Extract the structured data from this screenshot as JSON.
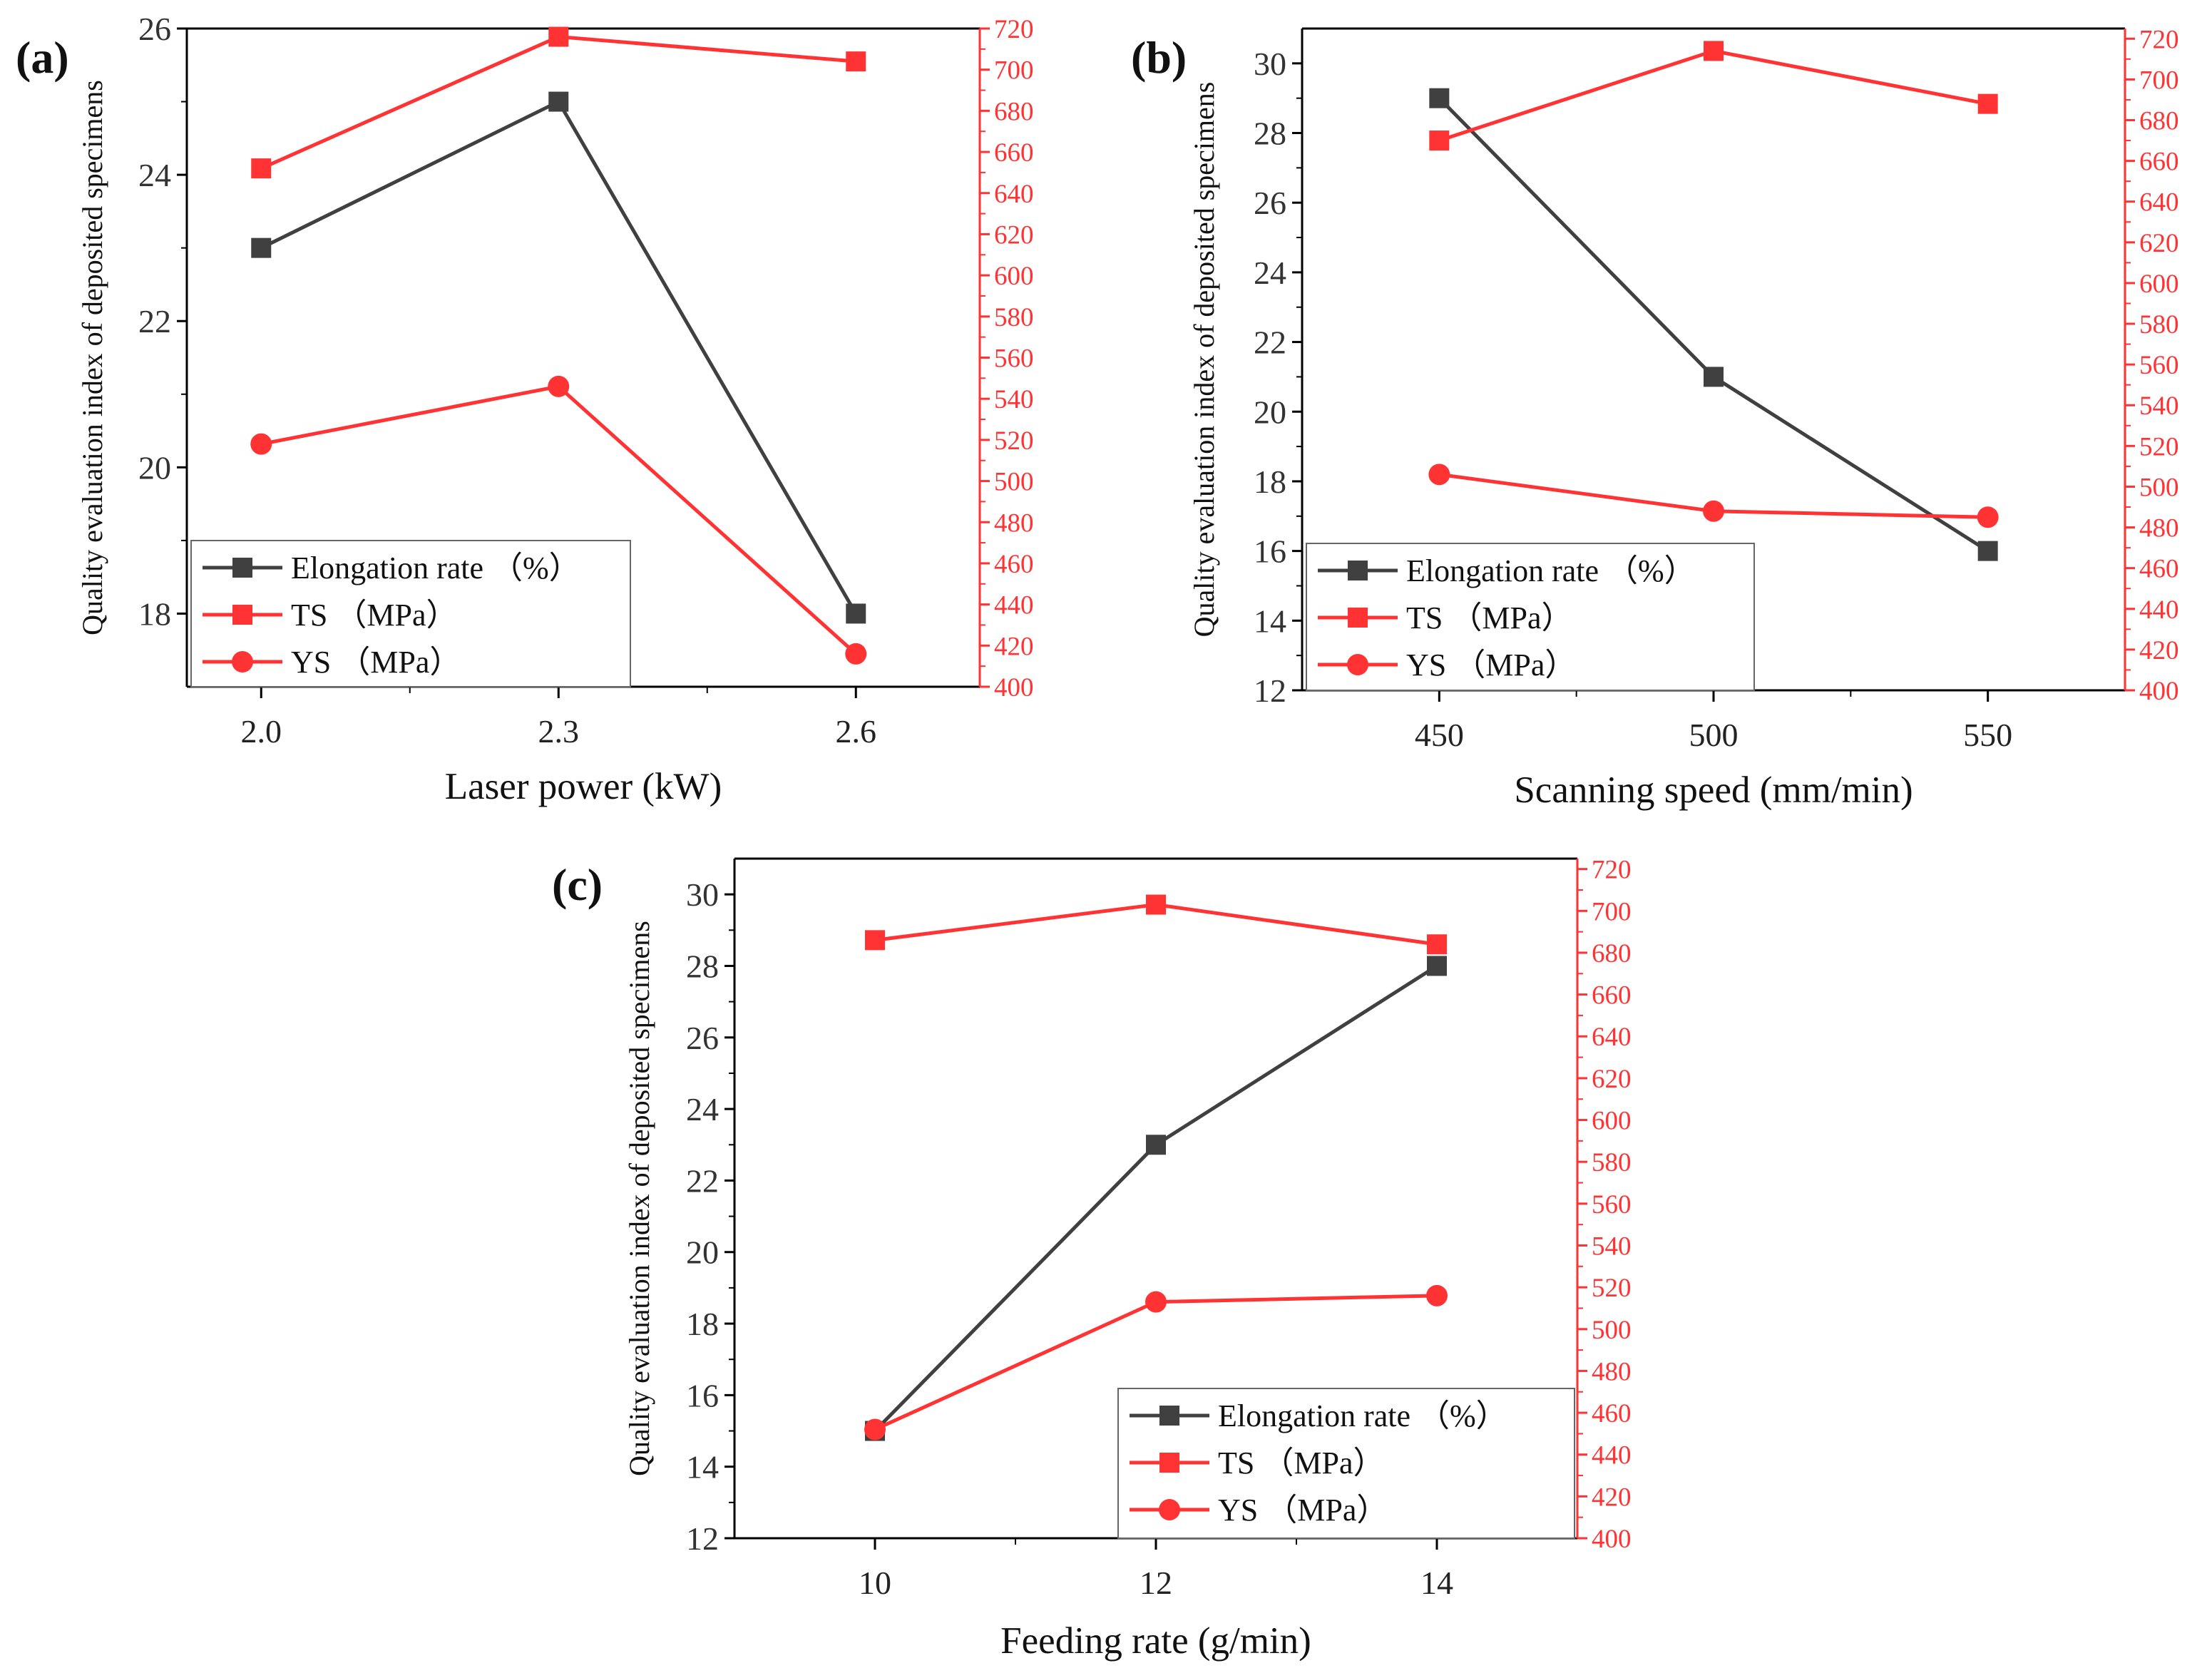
{
  "colors": {
    "elongation": "#404040",
    "strength": "#ff3333",
    "axis": "#000000",
    "right_axis": "#ff3333"
  },
  "chart_data": [
    {
      "type": "line",
      "panel_label": "(a)",
      "xlabel": "Laser power (kW)",
      "ylabel": "Quality evaluation index of deposited specimens",
      "categories": [
        "2.0",
        "2.3",
        "2.6"
      ],
      "x": [
        2.0,
        2.3,
        2.6
      ],
      "xlim": [
        1.925,
        2.725
      ],
      "ylim_left": [
        17,
        26
      ],
      "yticks_left": [
        "18",
        "20",
        "22",
        "24",
        "26"
      ],
      "ylim_right": [
        400,
        720
      ],
      "yticks_right": [
        "400",
        "420",
        "440",
        "460",
        "480",
        "500",
        "520",
        "540",
        "560",
        "580",
        "600",
        "620",
        "640",
        "660",
        "680",
        "700",
        "720"
      ],
      "legend_position": "bottom-left",
      "series": [
        {
          "name": "Elongation rate （%）",
          "axis": "left",
          "marker": "square",
          "values": [
            23,
            25,
            18
          ]
        },
        {
          "name": "TS （MPa）",
          "axis": "right",
          "marker": "square",
          "values": [
            652,
            716,
            704
          ]
        },
        {
          "name": "YS （MPa）",
          "axis": "right",
          "marker": "circle",
          "values": [
            518,
            546,
            416
          ]
        }
      ]
    },
    {
      "type": "line",
      "panel_label": "(b)",
      "xlabel": "Scanning speed (mm/min)",
      "ylabel": "Quality evaluation index of deposited specimens",
      "categories": [
        "450",
        "500",
        "550"
      ],
      "x": [
        450,
        500,
        550
      ],
      "xlim": [
        425,
        575
      ],
      "ylim_left": [
        12,
        31
      ],
      "yticks_left": [
        "12",
        "14",
        "16",
        "18",
        "20",
        "22",
        "24",
        "26",
        "28",
        "30"
      ],
      "ylim_right": [
        400,
        725
      ],
      "yticks_right": [
        "400",
        "420",
        "440",
        "460",
        "480",
        "500",
        "520",
        "540",
        "560",
        "580",
        "600",
        "620",
        "640",
        "660",
        "680",
        "700",
        "720"
      ],
      "legend_position": "bottom-left",
      "series": [
        {
          "name": "Elongation rate （%）",
          "axis": "left",
          "marker": "square",
          "values": [
            29,
            21,
            16
          ]
        },
        {
          "name": "TS （MPa）",
          "axis": "right",
          "marker": "square",
          "values": [
            670,
            714,
            688
          ]
        },
        {
          "name": "YS （MPa）",
          "axis": "right",
          "marker": "circle",
          "values": [
            506,
            488,
            485
          ]
        }
      ]
    },
    {
      "type": "line",
      "panel_label": "(c)",
      "xlabel": "Feeding rate (g/min)",
      "ylabel": "Quality evaluation index of deposited specimens",
      "categories": [
        "10",
        "12",
        "14"
      ],
      "x": [
        10,
        12,
        14
      ],
      "xlim": [
        9,
        15
      ],
      "ylim_left": [
        12,
        31
      ],
      "yticks_left": [
        "12",
        "14",
        "16",
        "18",
        "20",
        "22",
        "24",
        "26",
        "28",
        "30"
      ],
      "ylim_right": [
        400,
        725
      ],
      "yticks_right": [
        "400",
        "420",
        "440",
        "460",
        "480",
        "500",
        "520",
        "540",
        "560",
        "580",
        "600",
        "620",
        "640",
        "660",
        "680",
        "700",
        "720"
      ],
      "legend_position": "bottom-right",
      "series": [
        {
          "name": "Elongation rate （%）",
          "axis": "left",
          "marker": "square",
          "values": [
            15,
            23,
            28
          ]
        },
        {
          "name": "TS （MPa）",
          "axis": "right",
          "marker": "square",
          "values": [
            686,
            703,
            684
          ]
        },
        {
          "name": "YS （MPa）",
          "axis": "right",
          "marker": "circle",
          "values": [
            452,
            513,
            516
          ]
        }
      ]
    }
  ]
}
